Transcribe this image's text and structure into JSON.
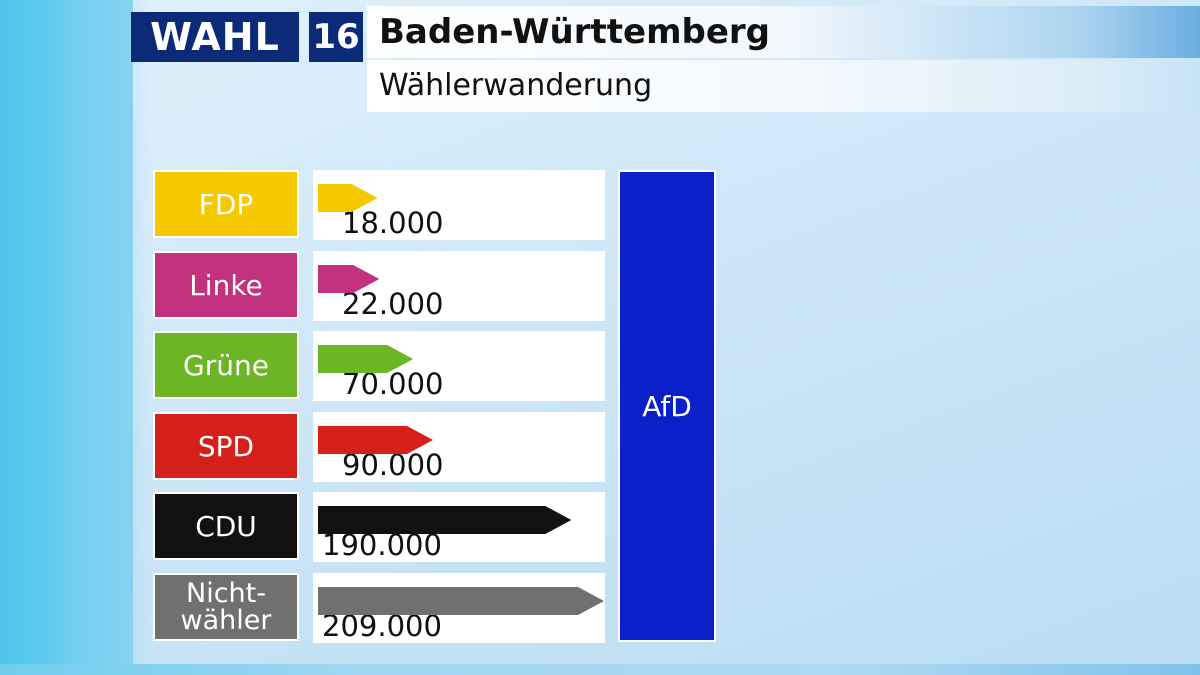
{
  "header": {
    "logo_text": "WAHL",
    "logo_number": "16",
    "title": "Baden-Württemberg",
    "subtitle": "Wählerwanderung"
  },
  "chart_data": {
    "type": "bar",
    "orientation": "horizontal",
    "categories": [
      "FDP",
      "Linke",
      "Grüne",
      "SPD",
      "CDU",
      "Nicht-\nwähler"
    ],
    "values": [
      18000,
      22000,
      70000,
      90000,
      190000,
      209000
    ],
    "value_labels": [
      "18.000",
      "22.000",
      "70.000",
      "90.000",
      "190.000",
      "209.000"
    ],
    "colors": [
      "#f6c800",
      "#c2327f",
      "#6cb524",
      "#d51f1b",
      "#111111",
      "#707070"
    ],
    "target": "AfD",
    "target_color": "#0b20c8",
    "title": "Wählerwanderung",
    "xlabel": "",
    "ylabel": "",
    "xlim": [
      0,
      209000
    ],
    "grid": false,
    "legend": "none"
  }
}
